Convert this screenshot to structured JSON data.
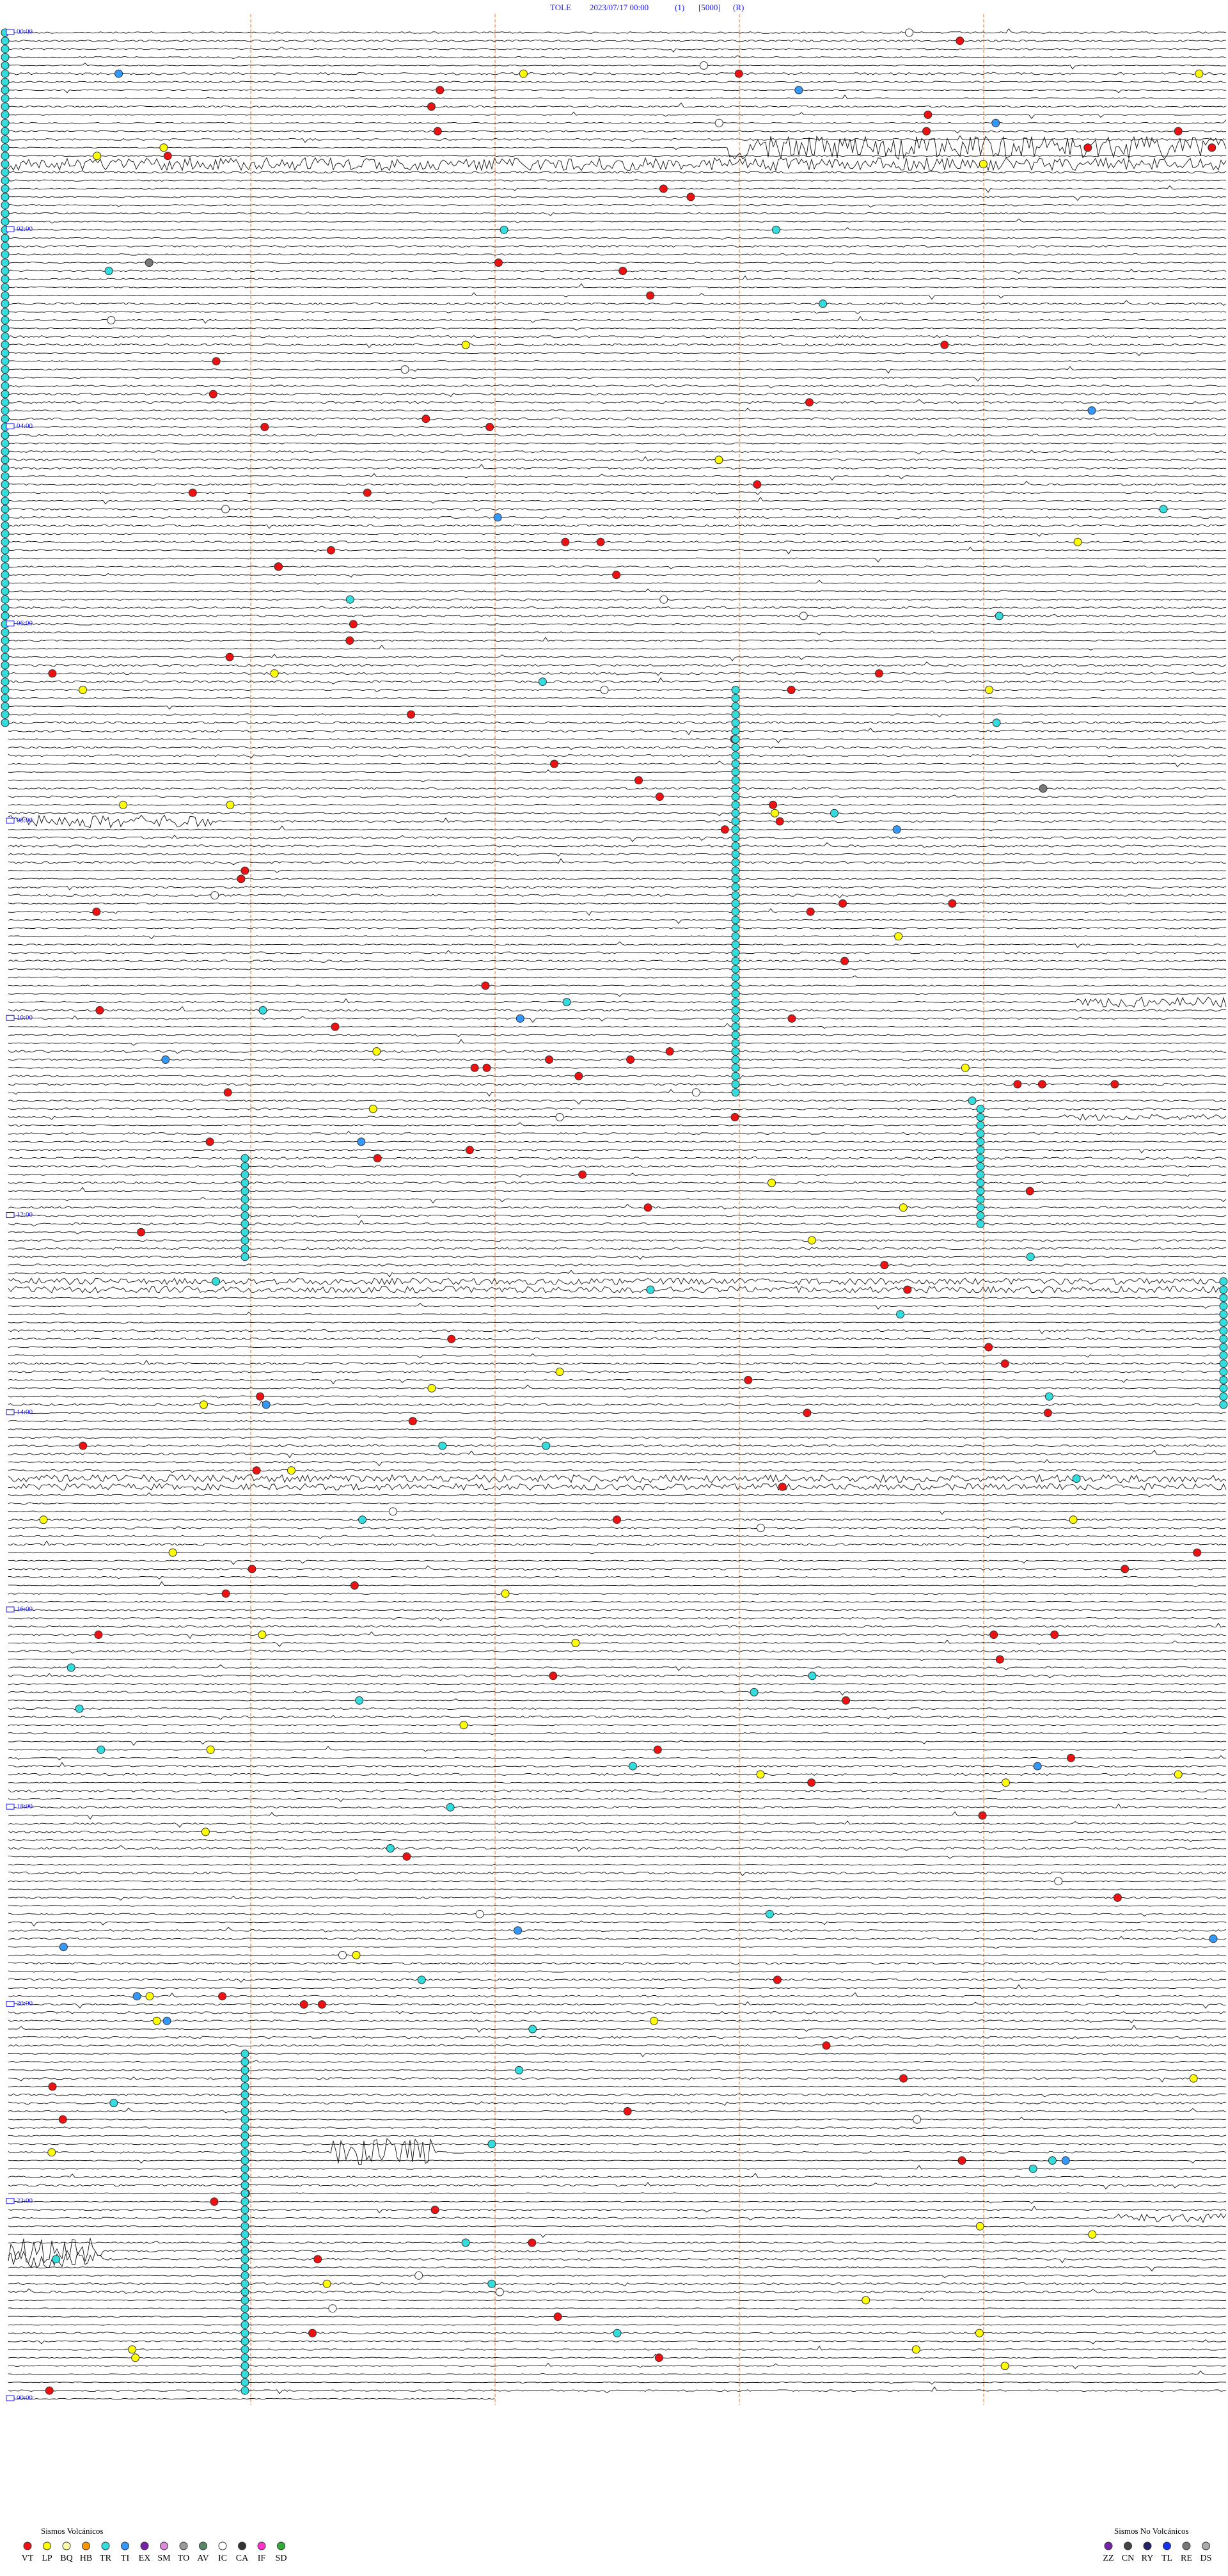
{
  "header": {
    "station": "TOLE",
    "datetime": "2023/07/17 00:00",
    "component": "(1)",
    "scale": "[5000]",
    "mode": "(R)"
  },
  "time_labels": [
    "00:00",
    "02:00",
    "04:00",
    "06:00",
    "08:00",
    "10:00",
    "12:00",
    "14:00",
    "16:00",
    "18:00",
    "20:00",
    "22:00",
    "00:00"
  ],
  "legend_volcanic": {
    "title": "Sismos Volcánicos",
    "items": [
      {
        "label": "VT",
        "color": "#ee1111"
      },
      {
        "label": "LP",
        "color": "#ffff00"
      },
      {
        "label": "BQ",
        "color": "#ffffaa"
      },
      {
        "label": "HB",
        "color": "#ff9900"
      },
      {
        "label": "TR",
        "color": "#33dddd"
      },
      {
        "label": "TI",
        "color": "#3399ff"
      },
      {
        "label": "EX",
        "color": "#7722aa"
      },
      {
        "label": "SM",
        "color": "#dd88dd"
      },
      {
        "label": "TO",
        "color": "#999999"
      },
      {
        "label": "AV",
        "color": "#558866"
      },
      {
        "label": "IC",
        "color": "#ffffff"
      },
      {
        "label": "CA",
        "color": "#333333"
      },
      {
        "label": "IF",
        "color": "#ff33cc"
      },
      {
        "label": "SD",
        "color": "#33aa33"
      }
    ]
  },
  "legend_non_volcanic": {
    "title": "Sismos No Volcánicos",
    "items": [
      {
        "label": "ZZ",
        "color": "#7722aa"
      },
      {
        "label": "CN",
        "color": "#444444"
      },
      {
        "label": "RY",
        "color": "#222266"
      },
      {
        "label": "TL",
        "color": "#1133ee"
      },
      {
        "label": "RE",
        "color": "#777777"
      },
      {
        "label": "DS",
        "color": "#aaaaaa"
      }
    ]
  }
}
